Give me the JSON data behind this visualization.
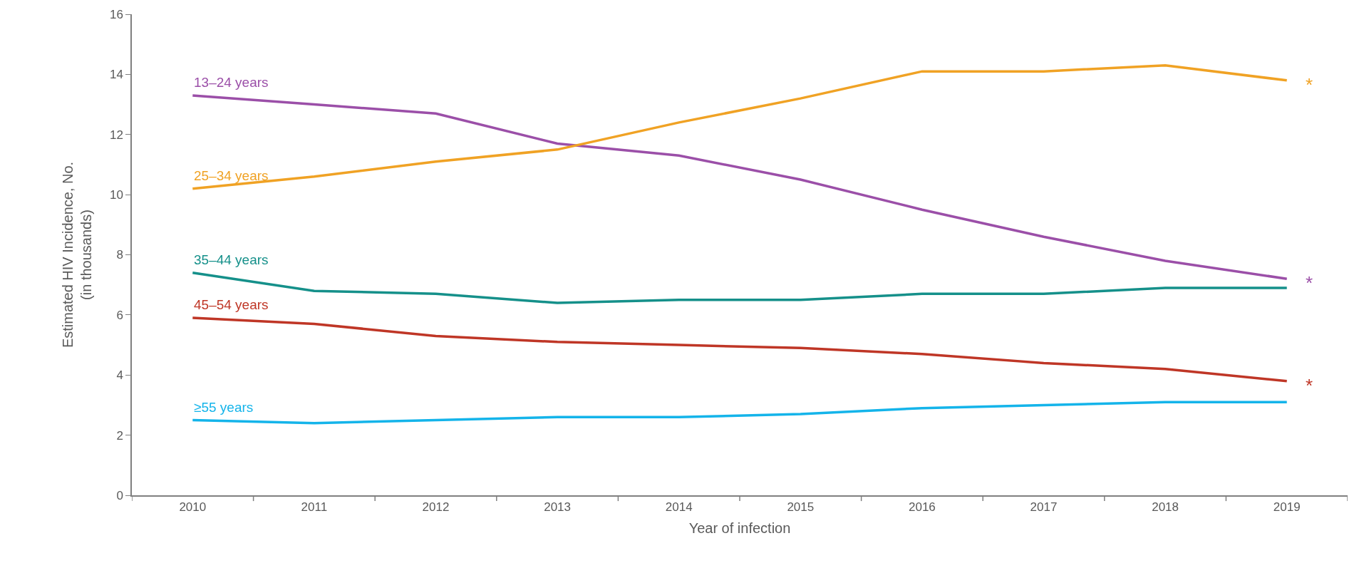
{
  "chart_data": {
    "type": "line",
    "xlabel": "Year of infection",
    "ylabel": "Estimated HIV Incidence, No.\n(in thousands)",
    "categories": [
      "2010",
      "2011",
      "2012",
      "2013",
      "2014",
      "2015",
      "2016",
      "2017",
      "2018",
      "2019"
    ],
    "series": [
      {
        "name": "13–24 years",
        "color": "#9b4fa8",
        "values": [
          13.3,
          13.0,
          12.7,
          11.7,
          11.3,
          10.5,
          9.5,
          8.6,
          7.8,
          7.2
        ]
      },
      {
        "name": "25–34 years",
        "color": "#f0a224",
        "values": [
          10.2,
          10.6,
          11.1,
          11.5,
          12.4,
          13.2,
          14.1,
          14.1,
          14.3,
          13.8
        ]
      },
      {
        "name": "35–44 years",
        "color": "#15908a",
        "values": [
          7.4,
          6.8,
          6.7,
          6.4,
          6.5,
          6.5,
          6.7,
          6.7,
          6.9,
          6.9
        ]
      },
      {
        "name": "45–54 years",
        "color": "#bf3626",
        "values": [
          5.9,
          5.7,
          5.3,
          5.1,
          5.0,
          4.9,
          4.7,
          4.4,
          4.2,
          3.8
        ]
      },
      {
        "name": "≥55 years",
        "color": "#14b4ea",
        "values": [
          2.5,
          2.4,
          2.5,
          2.6,
          2.6,
          2.7,
          2.9,
          3.0,
          3.1,
          3.1
        ]
      }
    ],
    "annotations": [
      {
        "text": "*",
        "x": "2019",
        "y": 13.8
      },
      {
        "text": "*",
        "x": "2019",
        "y": 7.2
      },
      {
        "text": "*",
        "x": "2019",
        "y": 3.8
      }
    ],
    "ylim": [
      0,
      16
    ],
    "yticks": [
      0,
      2,
      4,
      6,
      8,
      10,
      12,
      14,
      16
    ],
    "legend": false,
    "marker": "none",
    "line_style": "solid"
  }
}
